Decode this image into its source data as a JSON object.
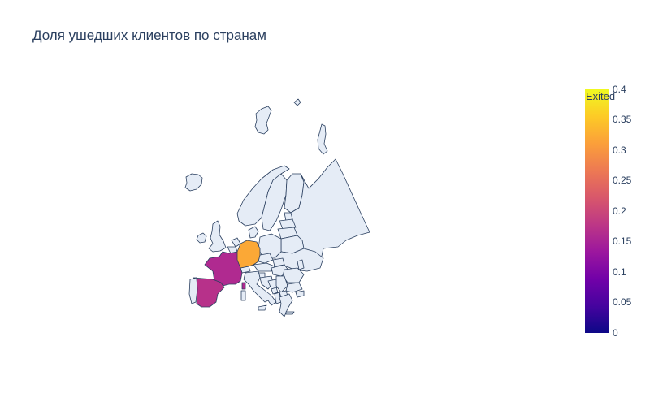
{
  "title": "Доля ушедших клиентов по странам",
  "colorbar": {
    "title": "Exited",
    "ticks": [
      "0",
      "0.05",
      "0.1",
      "0.15",
      "0.2",
      "0.25",
      "0.3",
      "0.35",
      "0.4"
    ],
    "range": [
      0,
      0.4
    ],
    "colorscale": [
      "#0d0887",
      "#46039f",
      "#7201a8",
      "#9c179e",
      "#bd3786",
      "#d8576b",
      "#ed7953",
      "#fb9f3a",
      "#fdca26",
      "#f0f921"
    ]
  },
  "map": {
    "scope": "europe",
    "land_color": "#e5ecf6",
    "border_color": "#2a3f5f"
  },
  "chart_data": {
    "type": "choropleth",
    "title": "Доля ушедших клиентов по странам",
    "color_label": "Exited",
    "locations": [
      "France",
      "Germany",
      "Spain"
    ],
    "values": [
      0.16,
      0.32,
      0.17
    ],
    "zrange": [
      0,
      0.4
    ]
  }
}
